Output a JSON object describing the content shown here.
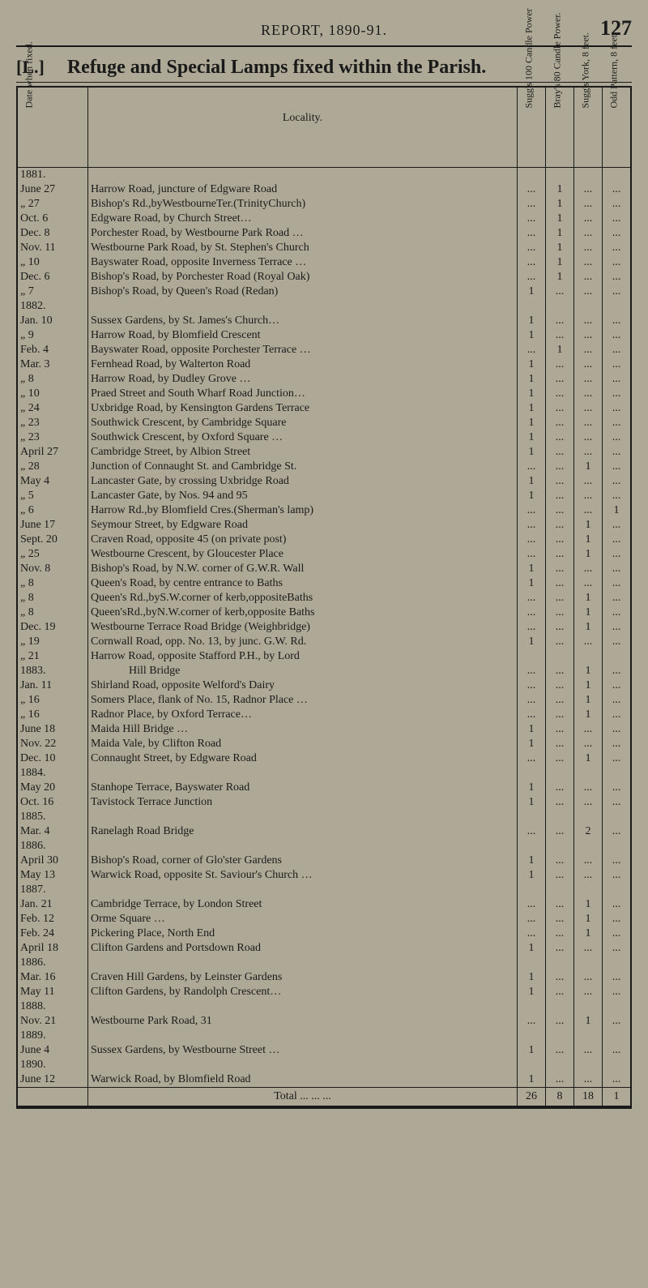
{
  "header": {
    "report_title": "REPORT, 1890-91.",
    "page_number": "127"
  },
  "section": {
    "label": "[L.]",
    "title": "Refuge and Special Lamps fixed within the Parish."
  },
  "columns": {
    "date": "Date when fixed.",
    "locality": "Locality.",
    "sugg100": "Sugg's 100 Candle Power",
    "bray80": "Bray's 80 Candle Power.",
    "suggyork": "Sugg's York, 8 feet.",
    "odd": "Odd Pattern, 8 feet."
  },
  "rows": [
    {
      "year": "1881."
    },
    {
      "date": "June 27",
      "loc": "Harrow Road, juncture of Edgware Road",
      "b": "1"
    },
    {
      "date": "„ 27",
      "loc": "Bishop's Rd.,byWestbourneTer.(TrinityChurch)",
      "b": "1"
    },
    {
      "date": "Oct. 6",
      "loc": "Edgware Road, by Church Street…",
      "b": "1"
    },
    {
      "date": "Dec. 8",
      "loc": "Porchester Road, by Westbourne Park Road …",
      "b": "1"
    },
    {
      "date": "Nov. 11",
      "loc": "Westbourne Park Road, by St. Stephen's Church",
      "b": "1"
    },
    {
      "date": "„ 10",
      "loc": "Bayswater Road, opposite Inverness Terrace …",
      "b": "1"
    },
    {
      "date": "Dec. 6",
      "loc": "Bishop's Road, by Porchester Road (Royal Oak)",
      "b": "1"
    },
    {
      "date": "„ 7",
      "loc": "Bishop's Road, by Queen's Road (Redan)",
      "a": "1"
    },
    {
      "year": "1882."
    },
    {
      "date": "Jan. 10",
      "loc": "Sussex Gardens, by St. James's Church…",
      "a": "1"
    },
    {
      "date": "„ 9",
      "loc": "Harrow Road, by Blomfield Crescent",
      "a": "1"
    },
    {
      "date": "Feb. 4",
      "loc": "Bayswater Road, opposite Porchester Terrace …",
      "b": "1"
    },
    {
      "date": "Mar. 3",
      "loc": "Fernhead Road, by Walterton Road",
      "a": "1"
    },
    {
      "date": "„ 8",
      "loc": "Harrow Road, by Dudley Grove …",
      "a": "1"
    },
    {
      "date": "„ 10",
      "loc": "Praed Street and South Wharf Road Junction…",
      "a": "1"
    },
    {
      "date": "„ 24",
      "loc": "Uxbridge Road, by Kensington Gardens Terrace",
      "a": "1"
    },
    {
      "date": "„ 23",
      "loc": "Southwick Crescent, by Cambridge Square",
      "a": "1"
    },
    {
      "date": "„ 23",
      "loc": "Southwick Crescent, by Oxford Square …",
      "a": "1"
    },
    {
      "date": "April 27",
      "loc": "Cambridge Street, by Albion Street",
      "a": "1"
    },
    {
      "date": "„ 28",
      "loc": "Junction of Connaught St. and Cambridge St.",
      "c": "1"
    },
    {
      "date": "May 4",
      "loc": "Lancaster Gate, by crossing Uxbridge Road",
      "a": "1"
    },
    {
      "date": "„ 5",
      "loc": "Lancaster Gate, by Nos. 94 and 95",
      "a": "1"
    },
    {
      "date": "„ 6",
      "loc": "Harrow Rd.,by Blomfield Cres.(Sherman's lamp)",
      "d": "1"
    },
    {
      "date": "June 17",
      "loc": "Seymour Street, by Edgware Road",
      "c": "1"
    },
    {
      "date": "Sept. 20",
      "loc": "Craven Road, opposite 45 (on private post)",
      "c": "1"
    },
    {
      "date": "„ 25",
      "loc": "Westbourne Crescent, by Gloucester Place",
      "c": "1"
    },
    {
      "date": "Nov. 8",
      "loc": "Bishop's Road, by N.W. corner of G.W.R. Wall",
      "a": "1"
    },
    {
      "date": "„ 8",
      "loc": "Queen's Road, by centre entrance to Baths",
      "a": "1"
    },
    {
      "date": "„ 8",
      "loc": "Queen's Rd.,byS.W.corner of kerb,oppositeBaths",
      "c": "1"
    },
    {
      "date": "„ 8",
      "loc": "Queen'sRd.,byN.W.corner of kerb,opposite Baths",
      "c": "1"
    },
    {
      "date": "Dec. 19",
      "loc": "Westbourne Terrace Road Bridge (Weighbridge)",
      "c": "1"
    },
    {
      "date": "„ 19",
      "loc": "Cornwall Road, opp. No. 13, by junc. G.W. Rd.",
      "a": "1"
    },
    {
      "date": "„ 21",
      "loc": "Harrow Road, opposite Stafford P.H., by Lord"
    },
    {
      "year": "1883.",
      "loc": "Hill Bridge",
      "c": "1",
      "indent": true
    },
    {
      "date": "Jan. 11",
      "loc": "Shirland Road, opposite Welford's Dairy",
      "c": "1"
    },
    {
      "date": "„ 16",
      "loc": "Somers Place, flank of No. 15, Radnor Place …",
      "c": "1"
    },
    {
      "date": "„ 16",
      "loc": "Radnor Place, by Oxford Terrace…",
      "c": "1"
    },
    {
      "date": "June 18",
      "loc": "Maida Hill Bridge …",
      "a": "1"
    },
    {
      "date": "Nov. 22",
      "loc": "Maida Vale, by Clifton Road",
      "a": "1"
    },
    {
      "date": "Dec. 10",
      "loc": "Connaught Street, by Edgware Road",
      "c": "1"
    },
    {
      "year": "1884."
    },
    {
      "date": "May 20",
      "loc": "Stanhope Terrace, Bayswater Road",
      "a": "1"
    },
    {
      "date": "Oct. 16",
      "loc": "Tavistock Terrace Junction",
      "a": "1"
    },
    {
      "year": "1885."
    },
    {
      "date": "Mar. 4",
      "loc": "Ranelagh Road Bridge",
      "c": "2"
    },
    {
      "year": "1886."
    },
    {
      "date": "April 30",
      "loc": "Bishop's Road, corner of Glo'ster Gardens",
      "a": "1"
    },
    {
      "date": "May 13",
      "loc": "Warwick Road, opposite St. Saviour's Church …",
      "a": "1"
    },
    {
      "year": "1887."
    },
    {
      "date": "Jan. 21",
      "loc": "Cambridge Terrace, by London Street",
      "c": "1"
    },
    {
      "date": "Feb. 12",
      "loc": "Orme Square …",
      "c": "1"
    },
    {
      "date": "Feb. 24",
      "loc": "Pickering Place, North End",
      "c": "1"
    },
    {
      "date": "April 18",
      "loc": "Clifton Gardens and Portsdown Road",
      "a": "1"
    },
    {
      "year": "1886."
    },
    {
      "date": "Mar. 16",
      "loc": "Craven Hill Gardens, by Leinster Gardens",
      "a": "1"
    },
    {
      "date": "May 11",
      "loc": "Clifton Gardens, by Randolph Crescent…",
      "a": "1"
    },
    {
      "year": "1888."
    },
    {
      "date": "Nov. 21",
      "loc": "Westbourne Park Road, 31",
      "c": "1"
    },
    {
      "year": "1889."
    },
    {
      "date": "June 4",
      "loc": "Sussex Gardens, by Westbourne Street …",
      "a": "1"
    },
    {
      "year": "1890."
    },
    {
      "date": "June 12",
      "loc": "Warwick Road, by Blomfield Road",
      "a": "1"
    }
  ],
  "total": {
    "label": "Total",
    "a": "26",
    "b": "8",
    "c": "18",
    "d": "1"
  }
}
